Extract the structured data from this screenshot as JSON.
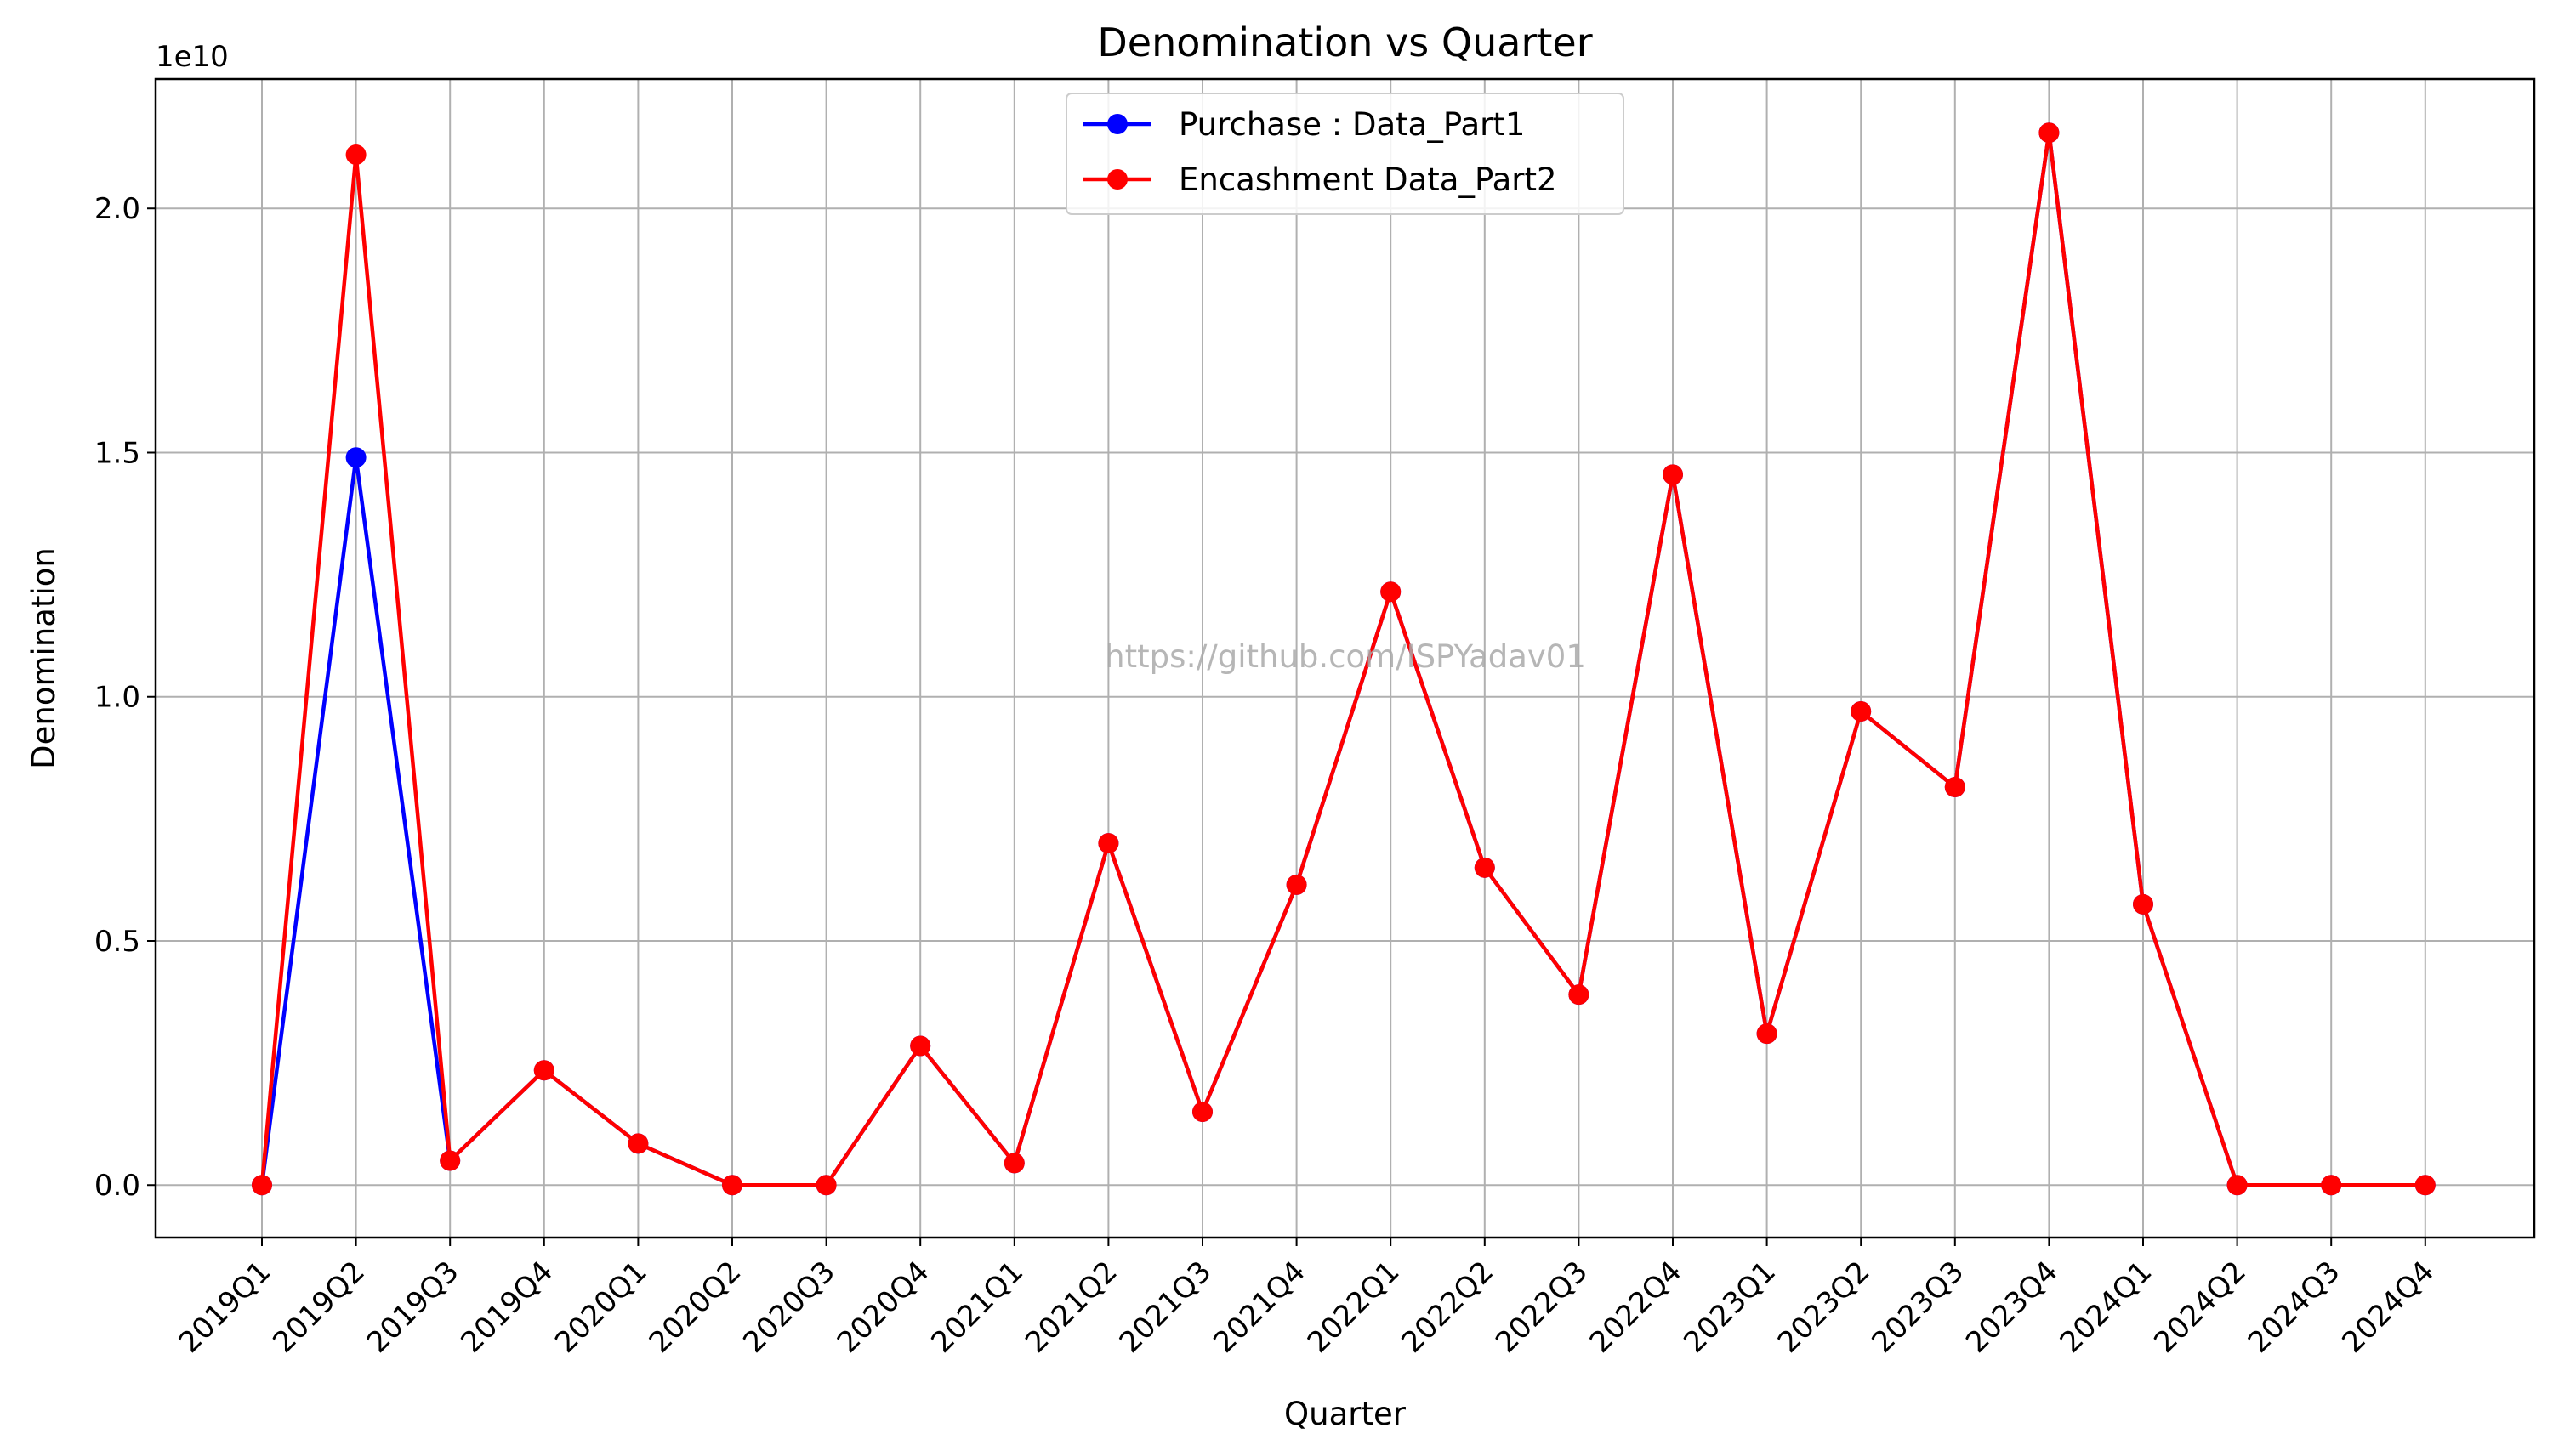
{
  "chart_data": {
    "type": "line",
    "title": "Denomination vs Quarter",
    "xlabel": "Quarter",
    "ylabel": "Denomination",
    "y_offset_label": "1e10",
    "categories": [
      "2019Q1",
      "2019Q2",
      "2019Q3",
      "2019Q4",
      "2020Q1",
      "2020Q2",
      "2020Q3",
      "2020Q4",
      "2021Q1",
      "2021Q2",
      "2021Q3",
      "2021Q4",
      "2022Q1",
      "2022Q2",
      "2022Q3",
      "2022Q4",
      "2023Q1",
      "2023Q2",
      "2023Q3",
      "2023Q4",
      "2024Q1",
      "2024Q2",
      "2024Q3",
      "2024Q4"
    ],
    "yticks": [
      "0.0",
      "0.5",
      "1.0",
      "1.5",
      "2.0"
    ],
    "ylim": [
      -0.1075,
      2.265
    ],
    "y_scale_note": "values in units of 1e10",
    "grid": true,
    "legend_position": "top-center",
    "watermark": "https://github.com/ISPYadav01",
    "series": [
      {
        "name": "Purchase : Data_Part1",
        "color": "#0000ff",
        "marker": "circle",
        "values": [
          0.0,
          1.49,
          0.05,
          0.235,
          0.085,
          0.0,
          0.0,
          0.285,
          0.045,
          0.7,
          0.15,
          0.615,
          1.215,
          0.65,
          0.39,
          1.455,
          0.31,
          0.97,
          0.815,
          2.155,
          0.575,
          0.0,
          0.0,
          0.0
        ]
      },
      {
        "name": "Encashment Data_Part2",
        "color": "#ff0000",
        "marker": "circle",
        "values": [
          0.0,
          2.11,
          0.05,
          0.235,
          0.085,
          0.0,
          0.0,
          0.285,
          0.045,
          0.7,
          0.15,
          0.615,
          1.215,
          0.65,
          0.39,
          1.455,
          0.31,
          0.97,
          0.815,
          2.155,
          0.575,
          0.0,
          0.0,
          0.0
        ]
      }
    ]
  }
}
